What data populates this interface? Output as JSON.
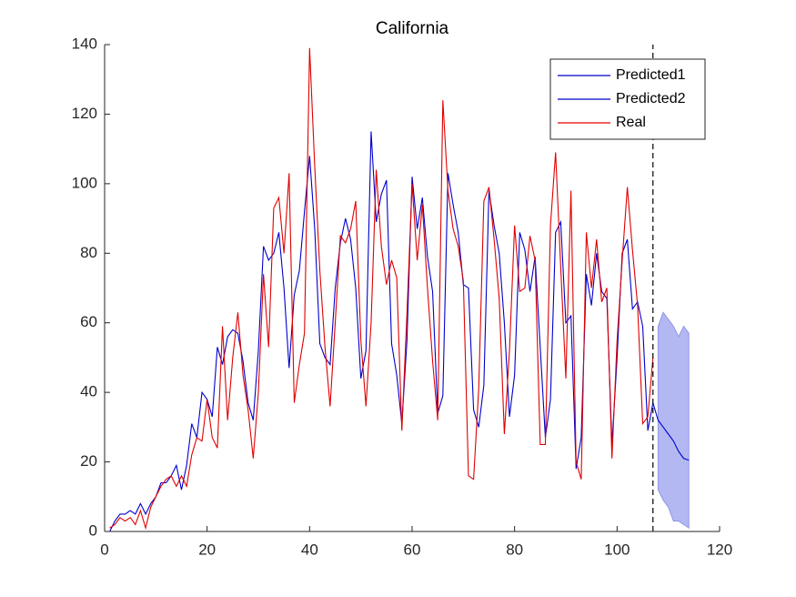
{
  "chart_data": {
    "type": "line",
    "title": "California",
    "x": [
      1,
      2,
      3,
      4,
      5,
      6,
      7,
      8,
      9,
      10,
      11,
      12,
      13,
      14,
      15,
      16,
      17,
      18,
      19,
      20,
      21,
      22,
      23,
      24,
      25,
      26,
      27,
      28,
      29,
      30,
      31,
      32,
      33,
      34,
      35,
      36,
      37,
      38,
      39,
      40,
      41,
      42,
      43,
      44,
      45,
      46,
      47,
      48,
      49,
      50,
      51,
      52,
      53,
      54,
      55,
      56,
      57,
      58,
      59,
      60,
      61,
      62,
      63,
      64,
      65,
      66,
      67,
      68,
      69,
      70,
      71,
      72,
      73,
      74,
      75,
      76,
      77,
      78,
      79,
      80,
      81,
      82,
      83,
      84,
      85,
      86,
      87,
      88,
      89,
      90,
      91,
      92,
      93,
      94,
      95,
      96,
      97,
      98,
      99,
      100,
      101,
      102,
      103,
      104,
      105,
      106,
      107
    ],
    "series": [
      {
        "name": "Predicted1",
        "color": "#0000cc",
        "values": [
          0,
          3,
          5,
          5,
          6,
          5,
          8,
          5,
          8,
          10,
          14,
          14,
          16,
          19,
          12,
          19,
          31,
          27,
          40,
          38,
          33,
          53,
          48,
          56,
          58,
          57,
          49,
          37,
          32,
          52,
          82,
          78,
          80,
          86,
          70,
          47,
          68,
          75,
          92,
          108,
          87,
          54,
          50,
          48,
          70,
          83,
          90,
          84,
          70,
          44,
          52,
          115,
          89,
          97,
          101,
          54,
          45,
          31,
          55,
          102,
          87,
          96,
          79,
          69,
          34,
          39,
          103,
          94,
          86,
          71,
          70,
          35,
          30,
          42,
          98,
          88,
          80,
          60,
          33,
          45,
          86,
          81,
          69,
          79,
          53,
          27,
          38,
          86,
          89,
          60,
          62,
          18,
          27,
          74,
          65,
          80,
          69,
          67,
          25,
          50,
          80,
          84,
          64,
          66,
          59,
          29,
          37
        ]
      },
      {
        "name": "Predicted2",
        "color": "#0000cc",
        "x": [
          107,
          108,
          109,
          110,
          111,
          112,
          113,
          114
        ],
        "values": [
          37,
          32,
          30,
          28,
          26,
          23,
          21,
          20.5
        ]
      },
      {
        "name": "Real",
        "color": "#e00000",
        "values": [
          1,
          2,
          4,
          3,
          4,
          2,
          6,
          1,
          7,
          10,
          13,
          15,
          16,
          13,
          16,
          13,
          22,
          27,
          26,
          38,
          27,
          24,
          59,
          32,
          50,
          63,
          45,
          35,
          21,
          40,
          74,
          53,
          93,
          96,
          80,
          103,
          37,
          48,
          57,
          139,
          105,
          75,
          53,
          36,
          60,
          85,
          83,
          87,
          95,
          55,
          36,
          60,
          104,
          82,
          71,
          78,
          73,
          29,
          63,
          100,
          78,
          94,
          70,
          49,
          32,
          124,
          98,
          87,
          82,
          72,
          16,
          15,
          41,
          95,
          99,
          84,
          67,
          28,
          52,
          88,
          69,
          70,
          85,
          78,
          25,
          25,
          88,
          109,
          76,
          44,
          98,
          20,
          15,
          86,
          70,
          84,
          66,
          70,
          21,
          55,
          78,
          99,
          81,
          65,
          31,
          33,
          50
        ]
      }
    ],
    "bands": [
      {
        "color": "#b3b8f2",
        "x": [
          108,
          109,
          110,
          111,
          112,
          113,
          114
        ],
        "upper": [
          59,
          63,
          61,
          59,
          56,
          59,
          57
        ],
        "lower": [
          12,
          9,
          7,
          3,
          3,
          2,
          1
        ]
      }
    ],
    "vline": 107,
    "xlim": [
      0,
      120
    ],
    "xticks": [
      0,
      20,
      40,
      60,
      80,
      100,
      120
    ],
    "ylim": [
      0,
      140
    ],
    "yticks": [
      0,
      20,
      40,
      60,
      80,
      100,
      120,
      140
    ],
    "legend": "upper-right"
  }
}
